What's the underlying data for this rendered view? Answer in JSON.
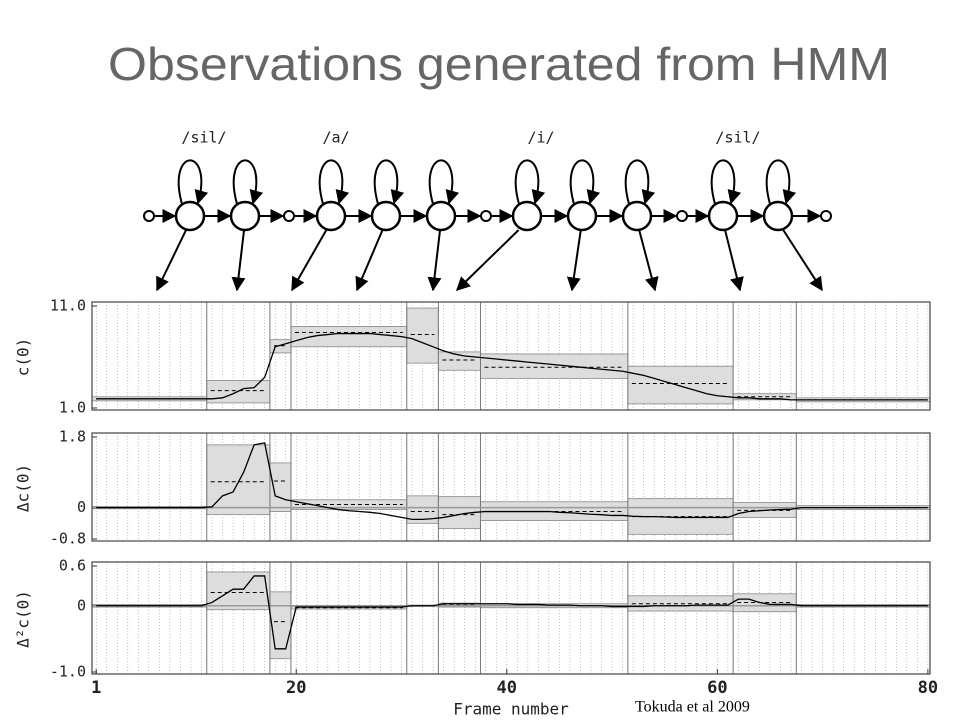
{
  "header": {
    "title": "Observations generated from HMM",
    "citation": "Tokuda et al 2009"
  },
  "hmm": {
    "labels": [
      "/sil/",
      "/a/",
      "/i/",
      "/sil/"
    ]
  },
  "chart_data": [
    {
      "type": "line",
      "ylabel": "c(0)",
      "xlim": [
        0.6,
        80.2
      ],
      "ylim": [
        1,
        11
      ],
      "yticks": [
        {
          "value": 1,
          "label": "1.0"
        },
        {
          "value": 11,
          "label": "11.0"
        }
      ],
      "x": [
        1,
        2,
        3,
        4,
        5,
        6,
        7,
        8,
        9,
        10,
        11,
        12,
        13,
        14,
        15,
        16,
        17,
        18,
        19,
        20,
        21,
        22,
        23,
        24,
        25,
        26,
        27,
        28,
        29,
        30,
        31,
        32,
        33,
        34,
        35,
        36,
        37,
        38,
        39,
        40,
        41,
        42,
        43,
        44,
        45,
        46,
        47,
        48,
        49,
        50,
        51,
        52,
        53,
        54,
        55,
        56,
        57,
        58,
        59,
        60,
        61,
        62,
        63,
        64,
        65,
        66,
        67,
        68,
        69,
        70,
        71,
        72,
        73,
        74,
        75,
        76,
        77,
        78,
        79,
        80
      ],
      "values": [
        1.9,
        1.9,
        1.9,
        1.9,
        1.9,
        1.9,
        1.9,
        1.9,
        1.9,
        1.9,
        1.9,
        1.9,
        2.0,
        2.4,
        2.9,
        3.0,
        4.0,
        7.0,
        7.3,
        7.6,
        7.9,
        8.1,
        8.2,
        8.3,
        8.3,
        8.3,
        8.3,
        8.2,
        8.1,
        8.0,
        7.8,
        7.4,
        7.0,
        6.6,
        6.3,
        6.1,
        6.0,
        5.9,
        5.8,
        5.7,
        5.6,
        5.5,
        5.4,
        5.3,
        5.2,
        5.1,
        5.0,
        4.9,
        4.8,
        4.7,
        4.6,
        4.4,
        4.2,
        3.9,
        3.6,
        3.3,
        3.0,
        2.7,
        2.4,
        2.2,
        2.1,
        2.0,
        2.0,
        1.9,
        1.9,
        1.9,
        1.8,
        1.8,
        1.8,
        1.8,
        1.8,
        1.8,
        1.8,
        1.8,
        1.8,
        1.8,
        1.8,
        1.8,
        1.8,
        1.8
      ],
      "state_edges": [
        0.6,
        11.5,
        17.5,
        19.5,
        30.5,
        33.5,
        37.5,
        51.5,
        61.5,
        67.5,
        80.2
      ],
      "state_means": [
        1.9,
        2.7,
        7.1,
        8.4,
        8.2,
        5.7,
        5.0,
        3.4,
        2.1,
        1.8
      ],
      "state_low": [
        1.7,
        1.5,
        6.4,
        7.0,
        5.4,
        4.7,
        3.9,
        1.4,
        1.8,
        1.6
      ],
      "state_high": [
        2.1,
        3.7,
        7.7,
        9.0,
        10.8,
        6.5,
        6.3,
        5.1,
        2.4,
        2.0
      ]
    },
    {
      "type": "line",
      "ylabel": "Δc(0)",
      "xlim": [
        0.6,
        80.2
      ],
      "ylim": [
        -0.8,
        1.8
      ],
      "yticks": [
        -0.8,
        0,
        1.8
      ],
      "x": [
        1,
        2,
        3,
        4,
        5,
        6,
        7,
        8,
        9,
        10,
        11,
        12,
        13,
        14,
        15,
        16,
        17,
        18,
        19,
        20,
        21,
        22,
        23,
        24,
        25,
        26,
        27,
        28,
        29,
        30,
        31,
        32,
        33,
        34,
        35,
        36,
        37,
        38,
        39,
        40,
        41,
        42,
        43,
        44,
        45,
        46,
        47,
        48,
        49,
        50,
        51,
        52,
        53,
        54,
        55,
        56,
        57,
        58,
        59,
        60,
        61,
        62,
        63,
        64,
        65,
        66,
        67,
        68,
        69,
        70,
        71,
        72,
        73,
        74,
        75,
        76,
        77,
        78,
        79,
        80
      ],
      "values": [
        0,
        0,
        0,
        0,
        0,
        0,
        0,
        0,
        0,
        0,
        0,
        0.02,
        0.3,
        0.4,
        0.9,
        1.6,
        1.65,
        0.3,
        0.2,
        0.15,
        0.1,
        0.05,
        0.0,
        -0.05,
        -0.08,
        -0.1,
        -0.12,
        -0.15,
        -0.2,
        -0.25,
        -0.3,
        -0.3,
        -0.28,
        -0.25,
        -0.2,
        -0.15,
        -0.12,
        -0.1,
        -0.1,
        -0.1,
        -0.1,
        -0.1,
        -0.1,
        -0.1,
        -0.12,
        -0.13,
        -0.15,
        -0.17,
        -0.18,
        -0.2,
        -0.2,
        -0.22,
        -0.23,
        -0.23,
        -0.24,
        -0.25,
        -0.25,
        -0.25,
        -0.25,
        -0.25,
        -0.25,
        -0.15,
        -0.1,
        -0.08,
        -0.06,
        -0.05,
        -0.04,
        0,
        0,
        0,
        0,
        0,
        0,
        0,
        0,
        0,
        0,
        0,
        0,
        0
      ],
      "state_edges": [
        0.6,
        11.5,
        17.5,
        19.5,
        30.5,
        33.5,
        37.5,
        51.5,
        61.5,
        67.5,
        80.2
      ],
      "state_means": [
        0,
        0.66,
        0.68,
        0.08,
        -0.1,
        -0.18,
        -0.1,
        -0.23,
        -0.07,
        0
      ],
      "state_low": [
        -0.03,
        -0.18,
        -0.1,
        -0.05,
        -0.4,
        -0.53,
        -0.33,
        -0.68,
        -0.25,
        -0.05
      ],
      "state_high": [
        0.03,
        1.6,
        1.14,
        0.2,
        0.3,
        0.28,
        0.15,
        0.23,
        0.13,
        0.05
      ]
    },
    {
      "type": "line",
      "ylabel": "Δ²c(0)",
      "xlabel": "Frame number",
      "xlim": [
        0.6,
        80.2
      ],
      "xticks": [
        1,
        20,
        40,
        60,
        80
      ],
      "ylim": [
        -1,
        0.6
      ],
      "yticks": [
        {
          "value": -1,
          "label": "-1.0"
        },
        0,
        0.6
      ],
      "x": [
        1,
        2,
        3,
        4,
        5,
        6,
        7,
        8,
        9,
        10,
        11,
        12,
        13,
        14,
        15,
        16,
        17,
        18,
        19,
        20,
        21,
        22,
        23,
        24,
        25,
        26,
        27,
        28,
        29,
        30,
        31,
        32,
        33,
        34,
        35,
        36,
        37,
        38,
        39,
        40,
        41,
        42,
        43,
        44,
        45,
        46,
        47,
        48,
        49,
        50,
        51,
        52,
        53,
        54,
        55,
        56,
        57,
        58,
        59,
        60,
        61,
        62,
        63,
        64,
        65,
        66,
        67,
        68,
        69,
        70,
        71,
        72,
        73,
        74,
        75,
        76,
        77,
        78,
        79,
        80
      ],
      "values": [
        0,
        0,
        0,
        0,
        0,
        0,
        0,
        0,
        0,
        0,
        0,
        0.05,
        0.15,
        0.25,
        0.25,
        0.45,
        0.45,
        -0.65,
        -0.65,
        -0.02,
        -0.02,
        -0.02,
        -0.02,
        -0.02,
        -0.02,
        -0.02,
        -0.02,
        -0.02,
        -0.02,
        -0.02,
        0,
        0,
        0,
        0.03,
        0.03,
        0.03,
        0.03,
        0.03,
        0.03,
        0.03,
        0.02,
        0.02,
        0.02,
        0.01,
        0.01,
        0.01,
        0,
        0,
        0,
        -0.01,
        -0.01,
        -0.01,
        -0.01,
        0,
        0,
        0,
        0,
        0.01,
        0.01,
        0.01,
        0.01,
        0.1,
        0.1,
        0.05,
        0.02,
        0.02,
        0.02,
        0,
        0,
        0,
        0,
        0,
        0,
        0,
        0,
        0,
        0,
        0,
        0,
        0
      ],
      "state_edges": [
        0.6,
        11.5,
        17.5,
        19.5,
        30.5,
        33.5,
        37.5,
        51.5,
        61.5,
        67.5,
        80.2
      ],
      "state_means": [
        0,
        0.2,
        -0.24,
        -0.03,
        0,
        0.01,
        0,
        0.03,
        0.05,
        0
      ],
      "state_low": [
        -0.02,
        -0.06,
        -0.8,
        -0.05,
        -0.01,
        -0.02,
        -0.03,
        -0.08,
        -0.09,
        -0.02
      ],
      "state_high": [
        0.02,
        0.51,
        0.21,
        -0.01,
        0.01,
        0.04,
        0.03,
        0.15,
        0.18,
        0.02
      ]
    }
  ]
}
